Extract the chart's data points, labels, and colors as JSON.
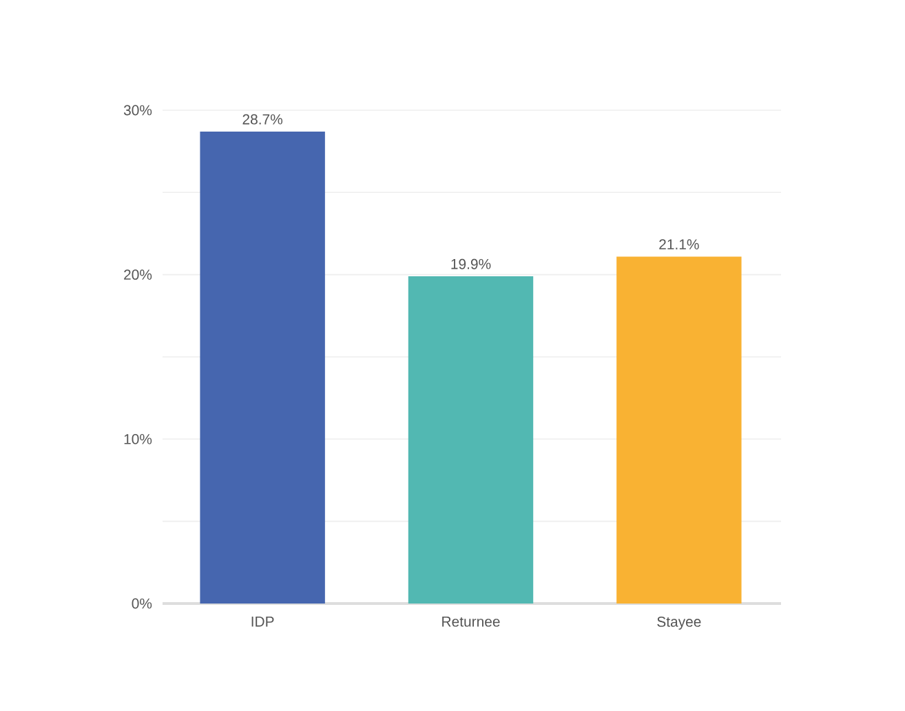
{
  "chart_data": {
    "type": "bar",
    "categories": [
      "IDP",
      "Returnee",
      "Stayee"
    ],
    "values": [
      28.7,
      19.9,
      21.1
    ],
    "colors": [
      "#4666af",
      "#52b8b2",
      "#f9b233"
    ],
    "value_labels": [
      "28.7%",
      "19.9%",
      "21.1%"
    ],
    "ylim": [
      0,
      30
    ],
    "yticks": [
      {
        "value": 0,
        "label": "0%"
      },
      {
        "value": 5,
        "label": null
      },
      {
        "value": 10,
        "label": "10%"
      },
      {
        "value": 15,
        "label": null
      },
      {
        "value": 20,
        "label": "20%"
      },
      {
        "value": 25,
        "label": null
      },
      {
        "value": 30,
        "label": "30%"
      }
    ],
    "grid": "y"
  }
}
